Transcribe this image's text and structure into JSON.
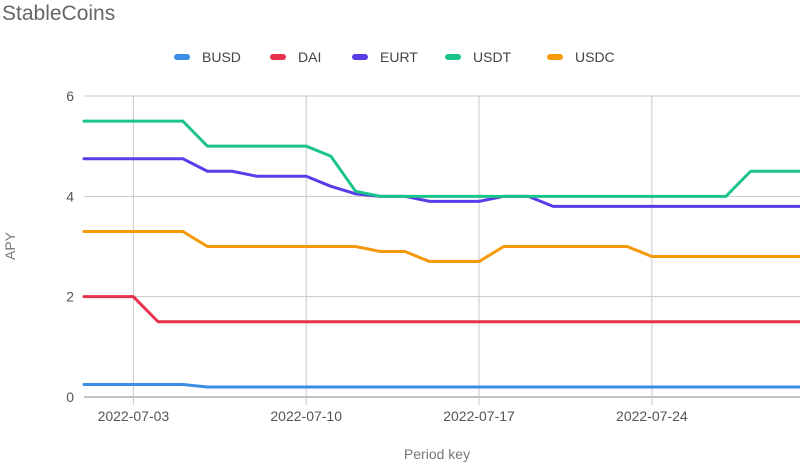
{
  "chart_data": {
    "type": "line",
    "title": "StableCoins",
    "xlabel": "Period key",
    "ylabel": "APY",
    "ylim": [
      0,
      6
    ],
    "yticks": [
      0,
      2,
      4,
      6
    ],
    "x_dates": [
      "2022-07-01",
      "2022-07-02",
      "2022-07-03",
      "2022-07-04",
      "2022-07-05",
      "2022-07-06",
      "2022-07-07",
      "2022-07-08",
      "2022-07-09",
      "2022-07-10",
      "2022-07-11",
      "2022-07-12",
      "2022-07-13",
      "2022-07-14",
      "2022-07-15",
      "2022-07-16",
      "2022-07-17",
      "2022-07-18",
      "2022-07-19",
      "2022-07-20",
      "2022-07-21",
      "2022-07-22",
      "2022-07-23",
      "2022-07-24",
      "2022-07-25",
      "2022-07-26",
      "2022-07-27",
      "2022-07-28",
      "2022-07-29",
      "2022-07-30"
    ],
    "xticks": [
      "2022-07-03",
      "2022-07-10",
      "2022-07-17",
      "2022-07-24"
    ],
    "x_range": [
      "2022-07-01",
      "2022-07-30"
    ],
    "grid": true,
    "legend_position": "top-center",
    "series": [
      {
        "name": "BUSD",
        "color": "#3a8ee6",
        "values": [
          0.25,
          0.25,
          0.25,
          0.25,
          0.25,
          0.2,
          0.2,
          0.2,
          0.2,
          0.2,
          0.2,
          0.2,
          0.2,
          0.2,
          0.2,
          0.2,
          0.2,
          0.2,
          0.2,
          0.2,
          0.2,
          0.2,
          0.2,
          0.2,
          0.2,
          0.2,
          0.2,
          0.2,
          0.2,
          0.2
        ]
      },
      {
        "name": "DAI",
        "color": "#e8314a",
        "values": [
          2,
          2,
          2,
          1.5,
          1.5,
          1.5,
          1.5,
          1.5,
          1.5,
          1.5,
          1.5,
          1.5,
          1.5,
          1.5,
          1.5,
          1.5,
          1.5,
          1.5,
          1.5,
          1.5,
          1.5,
          1.5,
          1.5,
          1.5,
          1.5,
          1.5,
          1.5,
          1.5,
          1.5,
          1.5
        ]
      },
      {
        "name": "EURT",
        "color": "#5c3be8",
        "values": [
          4.75,
          4.75,
          4.75,
          4.75,
          4.75,
          4.5,
          4.5,
          4.4,
          4.4,
          4.4,
          4.2,
          4.05,
          4.0,
          4.0,
          3.9,
          3.9,
          3.9,
          4.0,
          4.0,
          3.8,
          3.8,
          3.8,
          3.8,
          3.8,
          3.8,
          3.8,
          3.8,
          3.8,
          3.8,
          3.8
        ]
      },
      {
        "name": "USDT",
        "color": "#1cc48b",
        "values": [
          5.5,
          5.5,
          5.5,
          5.5,
          5.5,
          5.0,
          5.0,
          5.0,
          5.0,
          5.0,
          4.8,
          4.1,
          4.0,
          4.0,
          4.0,
          4.0,
          4.0,
          4.0,
          4.0,
          4.0,
          4.0,
          4.0,
          4.0,
          4.0,
          4.0,
          4.0,
          4.0,
          4.5,
          4.5,
          4.5
        ]
      },
      {
        "name": "USDC",
        "color": "#f59a0b",
        "values": [
          3.3,
          3.3,
          3.3,
          3.3,
          3.3,
          3.0,
          3.0,
          3.0,
          3.0,
          3.0,
          3.0,
          3.0,
          2.9,
          2.9,
          2.7,
          2.7,
          2.7,
          3.0,
          3.0,
          3.0,
          3.0,
          3.0,
          3.0,
          2.8,
          2.8,
          2.8,
          2.8,
          2.8,
          2.8,
          2.8
        ]
      }
    ]
  }
}
